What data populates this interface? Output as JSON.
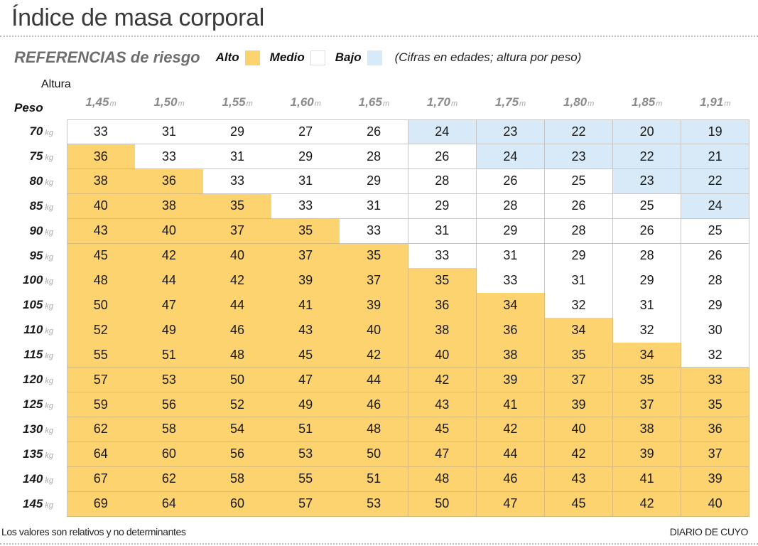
{
  "header": {
    "title": "Índice de masa corporal"
  },
  "legend": {
    "title": "REFERENCIAS de riesgo",
    "items": [
      {
        "key": "alto",
        "label": "Alto",
        "color": "#fdd36f"
      },
      {
        "key": "medio",
        "label": "Medio",
        "color": "#ffffff"
      },
      {
        "key": "bajo",
        "label": "Bajo",
        "color": "#d8eaf8"
      }
    ],
    "note": "(Cifras en edades; altura por peso)"
  },
  "axes": {
    "column_axis_label": "Altura",
    "row_axis_label": "Peso",
    "column_unit": "m",
    "row_unit": "kg"
  },
  "footer": {
    "note": "Los valores son relativos y no determinantes",
    "brand": "DIARIO DE CUYO"
  },
  "chart_data": {
    "type": "heatmap",
    "title": "Índice de masa corporal",
    "subtitle": "REFERENCIAS de riesgo — Alto / Medio / Bajo (Cifras en edades; altura por peso)",
    "xlabel": "Altura (m)",
    "ylabel": "Peso (kg)",
    "x": [
      "1,45",
      "1,50",
      "1,55",
      "1,60",
      "1,65",
      "1,70",
      "1,75",
      "1,80",
      "1,85",
      "1,91"
    ],
    "y": [
      "70",
      "75",
      "80",
      "85",
      "90",
      "95",
      "100",
      "105",
      "110",
      "115",
      "120",
      "125",
      "130",
      "135",
      "140",
      "145"
    ],
    "categories_legend": {
      "A": "Alto",
      "M": "Medio",
      "B": "Bajo"
    },
    "values": [
      [
        33,
        31,
        29,
        27,
        26,
        24,
        23,
        22,
        20,
        19
      ],
      [
        36,
        33,
        31,
        29,
        28,
        26,
        24,
        23,
        22,
        21
      ],
      [
        38,
        36,
        33,
        31,
        29,
        28,
        26,
        25,
        23,
        22
      ],
      [
        40,
        38,
        35,
        33,
        31,
        29,
        28,
        26,
        25,
        24
      ],
      [
        43,
        40,
        37,
        35,
        33,
        31,
        29,
        28,
        26,
        25
      ],
      [
        45,
        42,
        40,
        37,
        35,
        33,
        31,
        29,
        28,
        26
      ],
      [
        48,
        44,
        42,
        39,
        37,
        35,
        33,
        31,
        29,
        28
      ],
      [
        50,
        47,
        44,
        41,
        39,
        36,
        34,
        32,
        31,
        29
      ],
      [
        52,
        49,
        46,
        43,
        40,
        38,
        36,
        34,
        32,
        30
      ],
      [
        55,
        51,
        48,
        45,
        42,
        40,
        38,
        35,
        34,
        32
      ],
      [
        57,
        53,
        50,
        47,
        44,
        42,
        39,
        37,
        35,
        33
      ],
      [
        59,
        56,
        52,
        49,
        46,
        43,
        41,
        39,
        37,
        35
      ],
      [
        62,
        58,
        54,
        51,
        48,
        45,
        42,
        40,
        38,
        36
      ],
      [
        64,
        60,
        56,
        53,
        50,
        47,
        44,
        42,
        39,
        37
      ],
      [
        67,
        62,
        58,
        55,
        51,
        48,
        46,
        43,
        41,
        39
      ],
      [
        69,
        64,
        60,
        57,
        53,
        50,
        47,
        45,
        42,
        40
      ]
    ],
    "risk": [
      [
        "M",
        "M",
        "M",
        "M",
        "M",
        "B",
        "B",
        "B",
        "B",
        "B"
      ],
      [
        "A",
        "M",
        "M",
        "M",
        "M",
        "M",
        "B",
        "B",
        "B",
        "B"
      ],
      [
        "A",
        "A",
        "M",
        "M",
        "M",
        "M",
        "M",
        "M",
        "B",
        "B"
      ],
      [
        "A",
        "A",
        "A",
        "M",
        "M",
        "M",
        "M",
        "M",
        "M",
        "B"
      ],
      [
        "A",
        "A",
        "A",
        "A",
        "M",
        "M",
        "M",
        "M",
        "M",
        "M"
      ],
      [
        "A",
        "A",
        "A",
        "A",
        "A",
        "M",
        "M",
        "M",
        "M",
        "M"
      ],
      [
        "A",
        "A",
        "A",
        "A",
        "A",
        "A",
        "M",
        "M",
        "M",
        "M"
      ],
      [
        "A",
        "A",
        "A",
        "A",
        "A",
        "A",
        "A",
        "M",
        "M",
        "M"
      ],
      [
        "A",
        "A",
        "A",
        "A",
        "A",
        "A",
        "A",
        "A",
        "M",
        "M"
      ],
      [
        "A",
        "A",
        "A",
        "A",
        "A",
        "A",
        "A",
        "A",
        "A",
        "M"
      ],
      [
        "A",
        "A",
        "A",
        "A",
        "A",
        "A",
        "A",
        "A",
        "A",
        "A"
      ],
      [
        "A",
        "A",
        "A",
        "A",
        "A",
        "A",
        "A",
        "A",
        "A",
        "A"
      ],
      [
        "A",
        "A",
        "A",
        "A",
        "A",
        "A",
        "A",
        "A",
        "A",
        "A"
      ],
      [
        "A",
        "A",
        "A",
        "A",
        "A",
        "A",
        "A",
        "A",
        "A",
        "A"
      ],
      [
        "A",
        "A",
        "A",
        "A",
        "A",
        "A",
        "A",
        "A",
        "A",
        "A"
      ],
      [
        "A",
        "A",
        "A",
        "A",
        "A",
        "A",
        "A",
        "A",
        "A",
        "A"
      ]
    ],
    "grid": true,
    "legend_position": "top-left"
  }
}
